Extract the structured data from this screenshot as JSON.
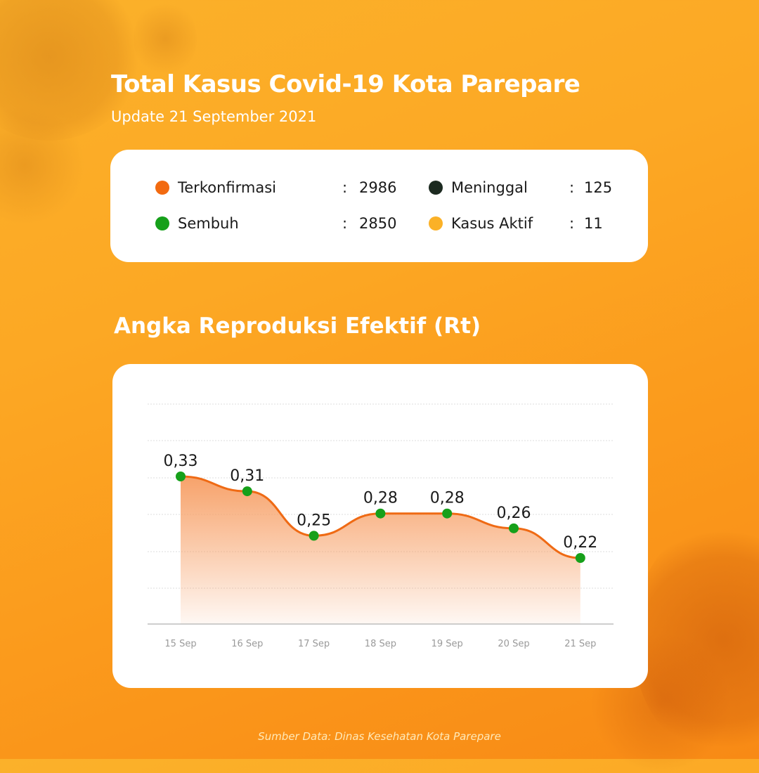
{
  "header": {
    "title": "Total Kasus Covid-19 Kota Parepare",
    "subtitle": "Update 21 September 2021"
  },
  "stats": [
    {
      "label": "Terkonfirmasi",
      "value": "2986",
      "color": "#f26a10"
    },
    {
      "label": "Sembuh",
      "value": "2850",
      "color": "#16a01a"
    },
    {
      "label": "Meninggal",
      "value": "125",
      "color": "#1c2a20"
    },
    {
      "label": "Kasus Aktif",
      "value": "11",
      "color": "#fbb127"
    }
  ],
  "separator": ":",
  "section_title": "Angka Reproduksi Efektif (Rt)",
  "source": "Sumber Data: Dinas Kesehatan Kota Parepare",
  "colors": {
    "background_top": "#fbb12a",
    "background_bottom": "#f88a15",
    "line": "#ef6a14",
    "marker": "#16a01a",
    "area_top": "#f7a26a",
    "axis_label": "#9a9a9a"
  },
  "chart_data": {
    "type": "area",
    "title": "Angka Reproduksi Efektif (Rt)",
    "xlabel": "",
    "ylabel": "",
    "categories": [
      "15 Sep",
      "16 Sep",
      "17 Sep",
      "18 Sep",
      "19 Sep",
      "20 Sep",
      "21 Sep"
    ],
    "values": [
      0.33,
      0.31,
      0.25,
      0.28,
      0.28,
      0.26,
      0.22
    ],
    "data_labels": [
      "0,33",
      "0,31",
      "0,25",
      "0,28",
      "0,28",
      "0,26",
      "0,22"
    ],
    "grid": true,
    "legend": false,
    "smooth": true
  }
}
